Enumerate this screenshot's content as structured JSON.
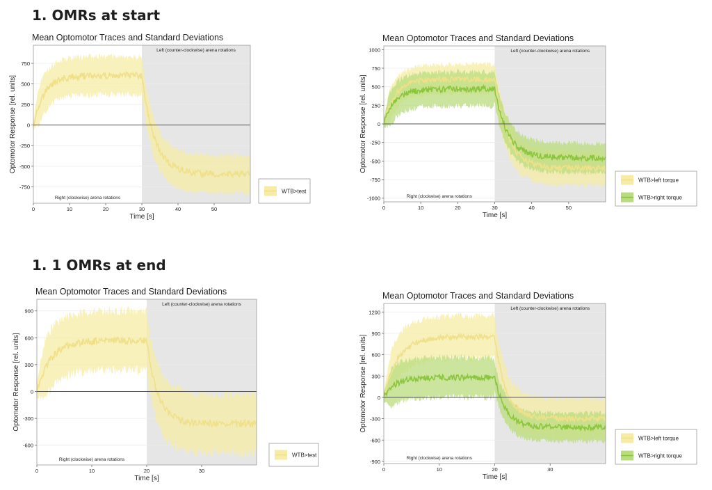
{
  "sections": [
    {
      "title": "1. OMRs at start"
    },
    {
      "title": "1. 1 OMRs at end"
    }
  ],
  "chart_data": [
    {
      "type": "line",
      "title": "Mean Optomotor Traces and Standard Deviations",
      "xlabel": "Time [s]",
      "ylabel": "Optomotor Response [rel. units]",
      "xlim": [
        0,
        60
      ],
      "ylim": [
        -950,
        970
      ],
      "xticks": [
        0,
        10,
        20,
        30,
        40,
        50
      ],
      "yticks": [
        -750,
        -500,
        -250,
        0,
        250,
        500,
        750
      ],
      "switch_time": 30,
      "annotation_left": "Right (clockwise) arena rotations",
      "annotation_right": "Left (counter-clockwise) arena rotations",
      "series": [
        {
          "name": "WTB>test",
          "color": "#f0e08a",
          "band": "#f6eca6",
          "t1": 600,
          "tau1": 3,
          "t2": -600,
          "tau2": 3.5,
          "sd1": 230,
          "sd2": 230
        }
      ]
    },
    {
      "type": "line",
      "title": "Mean Optomotor Traces and Standard Deviations",
      "xlabel": "Time [s]",
      "ylabel": "Optomotor Response [rel. units]",
      "xlim": [
        0,
        60
      ],
      "ylim": [
        -1050,
        1050
      ],
      "xticks": [
        0,
        10,
        20,
        30,
        40,
        50
      ],
      "yticks": [
        -1000,
        -750,
        -500,
        -250,
        0,
        250,
        500,
        750,
        1000
      ],
      "switch_time": 30,
      "annotation_left": "Right (clockwise) arena rotations",
      "annotation_right": "Left (counter-clockwise) arena rotations",
      "series": [
        {
          "name": "WTB>left torque",
          "color": "#f0e08a",
          "band": "#f6eca6",
          "t1": 600,
          "tau1": 3,
          "t2": -600,
          "tau2": 3.5,
          "sd1": 200,
          "sd2": 230
        },
        {
          "name": "WTB>right torque",
          "color": "#8cc63e",
          "band": "#b9dc7e",
          "t1": 470,
          "tau1": 3,
          "t2": -460,
          "tau2": 3.5,
          "sd1": 230,
          "sd2": 200
        }
      ]
    },
    {
      "type": "line",
      "title": "Mean Optomotor Traces and Standard Deviations",
      "xlabel": "Time [s]",
      "ylabel": "Optomotor Response [rel. units]",
      "xlim": [
        0,
        40
      ],
      "ylim": [
        -820,
        1030
      ],
      "xticks": [
        0,
        10,
        20,
        30
      ],
      "yticks": [
        -600,
        -300,
        0,
        300,
        600,
        900
      ],
      "switch_time": 20,
      "annotation_left": "Right (clockwise) arena rotations",
      "annotation_right": "Left (counter-clockwise) arena rotations",
      "series": [
        {
          "name": "WTB>test",
          "color": "#f0e08a",
          "band": "#f6eca6",
          "t1": 570,
          "tau1": 2.5,
          "t2": -360,
          "tau2": 2,
          "sd1": 330,
          "sd2": 330
        }
      ]
    },
    {
      "type": "line",
      "title": "Mean Optomotor Traces and Standard Deviations",
      "xlabel": "Time [s]",
      "ylabel": "Optomotor Response [rel. units]",
      "xlim": [
        0,
        40
      ],
      "ylim": [
        -930,
        1320
      ],
      "xticks": [
        0,
        10,
        20,
        30
      ],
      "yticks": [
        -900,
        -600,
        -300,
        0,
        300,
        600,
        900,
        1200
      ],
      "switch_time": 20,
      "annotation_left": "Right (clockwise) arena rotations",
      "annotation_right": "Left (counter-clockwise) arena rotations",
      "series": [
        {
          "name": "WTB>left torque",
          "color": "#f0e08a",
          "band": "#f6eca6",
          "t1": 850,
          "tau1": 2.5,
          "t2": -300,
          "tau2": 2,
          "sd1": 300,
          "sd2": 280
        },
        {
          "name": "WTB>right torque",
          "color": "#8cc63e",
          "band": "#b9dc7e",
          "t1": 280,
          "tau1": 2,
          "t2": -420,
          "tau2": 2,
          "sd1": 280,
          "sd2": 200
        }
      ]
    }
  ]
}
